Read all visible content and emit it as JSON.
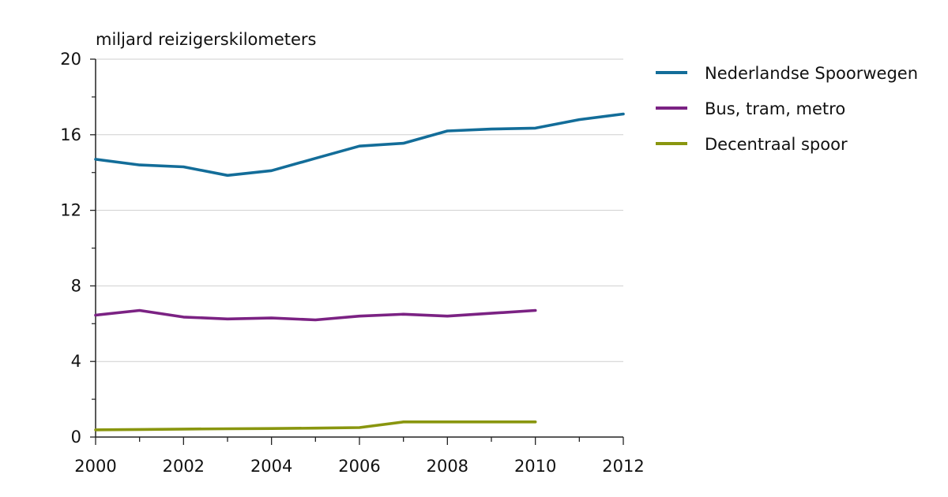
{
  "chart_data": {
    "type": "line",
    "title": "",
    "xlabel": "",
    "ylabel": "miljard reizigerskilometers",
    "xlim": [
      2000,
      2012
    ],
    "ylim": [
      0,
      20
    ],
    "x_ticks": [
      "2000",
      "2002",
      "2004",
      "2006",
      "2008",
      "2010",
      "2012"
    ],
    "y_ticks": [
      "0",
      "4",
      "8",
      "12",
      "16",
      "20"
    ],
    "grid": "horizontal",
    "legend_position": "right",
    "series": [
      {
        "name": "Nederlandse Spoorwegen",
        "color": "#136d99",
        "x": [
          2000,
          2001,
          2002,
          2003,
          2004,
          2005,
          2006,
          2007,
          2008,
          2009,
          2010,
          2011,
          2012
        ],
        "y": [
          14.7,
          14.4,
          14.3,
          13.85,
          14.1,
          14.75,
          15.4,
          15.55,
          16.2,
          16.3,
          16.35,
          16.8,
          17.1
        ]
      },
      {
        "name": "Bus, tram, metro",
        "color": "#7b2283",
        "x": [
          2000,
          2001,
          2002,
          2003,
          2004,
          2005,
          2006,
          2007,
          2008,
          2009,
          2010
        ],
        "y": [
          6.45,
          6.7,
          6.35,
          6.25,
          6.3,
          6.2,
          6.4,
          6.5,
          6.4,
          6.55,
          6.7
        ]
      },
      {
        "name": "Decentraal spoor",
        "color": "#89960f",
        "x": [
          2000,
          2001,
          2002,
          2003,
          2004,
          2005,
          2006,
          2007,
          2008,
          2009,
          2010
        ],
        "y": [
          0.38,
          0.4,
          0.42,
          0.44,
          0.45,
          0.47,
          0.5,
          0.8,
          0.8,
          0.8,
          0.8
        ]
      }
    ]
  }
}
